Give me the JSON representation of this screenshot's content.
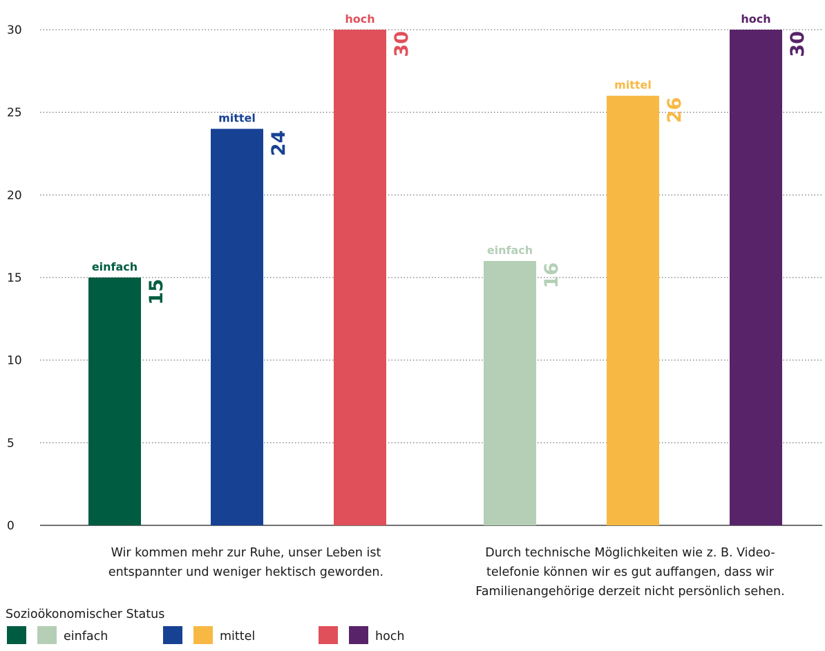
{
  "chart_data": {
    "type": "bar",
    "ylim": [
      0,
      30
    ],
    "yticks": [
      0,
      5,
      10,
      15,
      20,
      25,
      30
    ],
    "grid": true,
    "groups": [
      {
        "label_lines": [
          "Wir kommen mehr zur Ruhe, unser Leben ist",
          "entspannter und weniger hektisch geworden."
        ],
        "bars": [
          {
            "category": "einfach",
            "value": 15,
            "label": "15",
            "color": "#005C41"
          },
          {
            "category": "mittel",
            "value": 24,
            "label": "24",
            "color": "#174294"
          },
          {
            "category": "hoch",
            "value": 30,
            "label": "30",
            "color": "#E0505A"
          }
        ]
      },
      {
        "label_lines": [
          "Durch technische Möglichkeiten wie z. B. Video-",
          "telefonie können wir es gut auffangen, dass wir",
          "Familienangehörige derzeit nicht persönlich sehen."
        ],
        "bars": [
          {
            "category": "einfach",
            "value": 16,
            "label": "16",
            "color": "#B4CFB6"
          },
          {
            "category": "mittel",
            "value": 26,
            "label": "26",
            "color": "#F8B944"
          },
          {
            "category": "hoch",
            "value": 30,
            "label": "30",
            "color": "#582368"
          }
        ]
      }
    ],
    "legend": {
      "title": "Sozioökonomischer Status",
      "placement": "bottom-left",
      "items": [
        {
          "label": "einfach",
          "colors": [
            "#005C41",
            "#B4CFB6"
          ]
        },
        {
          "label": "mittel",
          "colors": [
            "#174294",
            "#F8B944"
          ]
        },
        {
          "label": "hoch",
          "colors": [
            "#E0505A",
            "#582368"
          ]
        }
      ]
    }
  }
}
